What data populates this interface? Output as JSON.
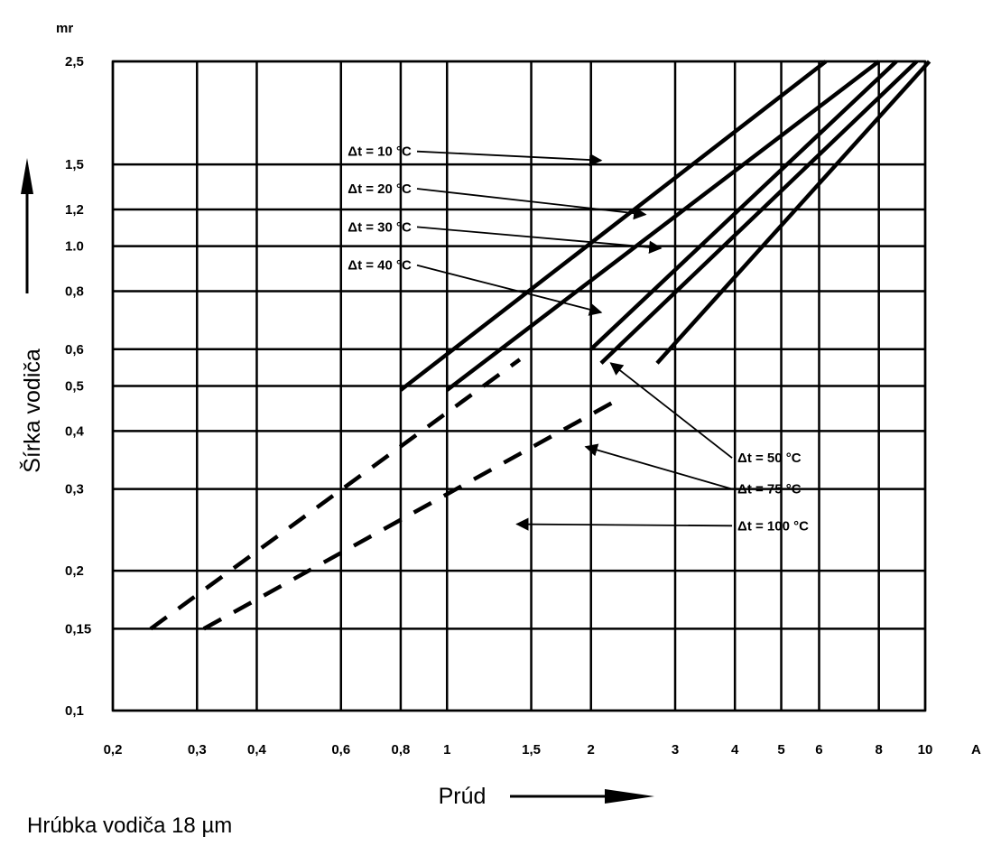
{
  "chart_data": {
    "type": "line",
    "title": "",
    "xlabel": "Prúd",
    "ylabel": "Šírka vodiča",
    "x_unit": "A",
    "y_unit": "mm",
    "x_unit_printed": "A",
    "y_unit_printed": "mr",
    "x_scale": "log",
    "y_scale": "log",
    "xlim": [
      0.2,
      10
    ],
    "ylim": [
      0.1,
      2.5
    ],
    "grid": true,
    "x_ticks": [
      {
        "value": 0.2,
        "label": "0,2"
      },
      {
        "value": 0.3,
        "label": "0,3"
      },
      {
        "value": 0.4,
        "label": "0,4"
      },
      {
        "value": 0.6,
        "label": "0,6"
      },
      {
        "value": 0.8,
        "label": "0,8"
      },
      {
        "value": 1,
        "label": "1"
      },
      {
        "value": 1.5,
        "label": "1,5"
      },
      {
        "value": 2,
        "label": "2"
      },
      {
        "value": 3,
        "label": "3"
      },
      {
        "value": 4,
        "label": "4"
      },
      {
        "value": 5,
        "label": "5"
      },
      {
        "value": 6,
        "label": "6"
      },
      {
        "value": 8,
        "label": "8"
      },
      {
        "value": 10,
        "label": "10"
      }
    ],
    "y_ticks": [
      {
        "value": 0.1,
        "label": "0,1"
      },
      {
        "value": 0.15,
        "label": "0,15"
      },
      {
        "value": 0.2,
        "label": "0,2"
      },
      {
        "value": 0.3,
        "label": "0,3"
      },
      {
        "value": 0.4,
        "label": "0,4"
      },
      {
        "value": 0.5,
        "label": "0,5"
      },
      {
        "value": 0.6,
        "label": "0,6"
      },
      {
        "value": 0.8,
        "label": "0,8"
      },
      {
        "value": 1.0,
        "label": "1.0"
      },
      {
        "value": 1.2,
        "label": "1,2"
      },
      {
        "value": 1.5,
        "label": "1,5"
      },
      {
        "value": 2.5,
        "label": "2,5"
      }
    ],
    "series": [
      {
        "name": "Δt = 10 °C",
        "style": "solid",
        "x": [
          0.8,
          6.2
        ],
        "y": [
          0.49,
          2.5
        ]
      },
      {
        "name": "Δt = 20 °C",
        "style": "solid",
        "x": [
          1.0,
          8.0
        ],
        "y": [
          0.49,
          2.5
        ]
      },
      {
        "name": "Δt = 30 °C",
        "style": "solid",
        "x": [
          2.0,
          8.7
        ],
        "y": [
          0.6,
          2.5
        ]
      },
      {
        "name": "Δt = 40 °C",
        "style": "solid",
        "x": [
          2.1,
          9.6
        ],
        "y": [
          0.56,
          2.5
        ]
      },
      {
        "name": "Δt = 50 °C",
        "style": "solid",
        "x": [
          2.75,
          10.2
        ],
        "y": [
          0.56,
          2.5
        ]
      },
      {
        "name": "Δt = 75 °C",
        "style": "dashed",
        "x": [
          0.24,
          1.42
        ],
        "y": [
          0.15,
          0.57
        ]
      },
      {
        "name": "Δt = 100 °C",
        "style": "dashed",
        "x": [
          0.31,
          2.3
        ],
        "y": [
          0.15,
          0.47
        ]
      }
    ],
    "annotations": [
      {
        "label_prefix": "Δt = ",
        "label_value": "10",
        "label_unit": "°C",
        "x": 0.62,
        "y": 1.6,
        "arrow_to": [
          2.1,
          1.53
        ]
      },
      {
        "label_prefix": "Δt = ",
        "label_value": "20",
        "label_unit": "°C",
        "x": 0.62,
        "y": 1.33,
        "arrow_to": [
          2.6,
          1.17
        ]
      },
      {
        "label_prefix": "Δt = ",
        "label_value": "30",
        "label_unit": "°C",
        "x": 0.62,
        "y": 1.1,
        "arrow_to": [
          2.8,
          0.99
        ]
      },
      {
        "label_prefix": "Δt = ",
        "label_value": "40",
        "label_unit": "°C",
        "x": 0.62,
        "y": 0.91,
        "arrow_to": [
          2.1,
          0.72
        ]
      },
      {
        "label_prefix": "Δt = ",
        "label_value": "50",
        "label_unit": "°C",
        "x": 4.05,
        "y": 0.35,
        "arrow_to": [
          2.2,
          0.56
        ]
      },
      {
        "label_prefix": "Δt = ",
        "label_value": "75",
        "label_unit": "°C",
        "x": 4.05,
        "y": 0.3,
        "arrow_to": [
          1.95,
          0.37
        ]
      },
      {
        "label_prefix": "Δt = ",
        "label_value": "100",
        "label_unit": "°C",
        "x": 4.05,
        "y": 0.25,
        "arrow_to": [
          1.4,
          0.252
        ]
      }
    ],
    "caption": "Hrúbka vodiča 18  µm"
  }
}
